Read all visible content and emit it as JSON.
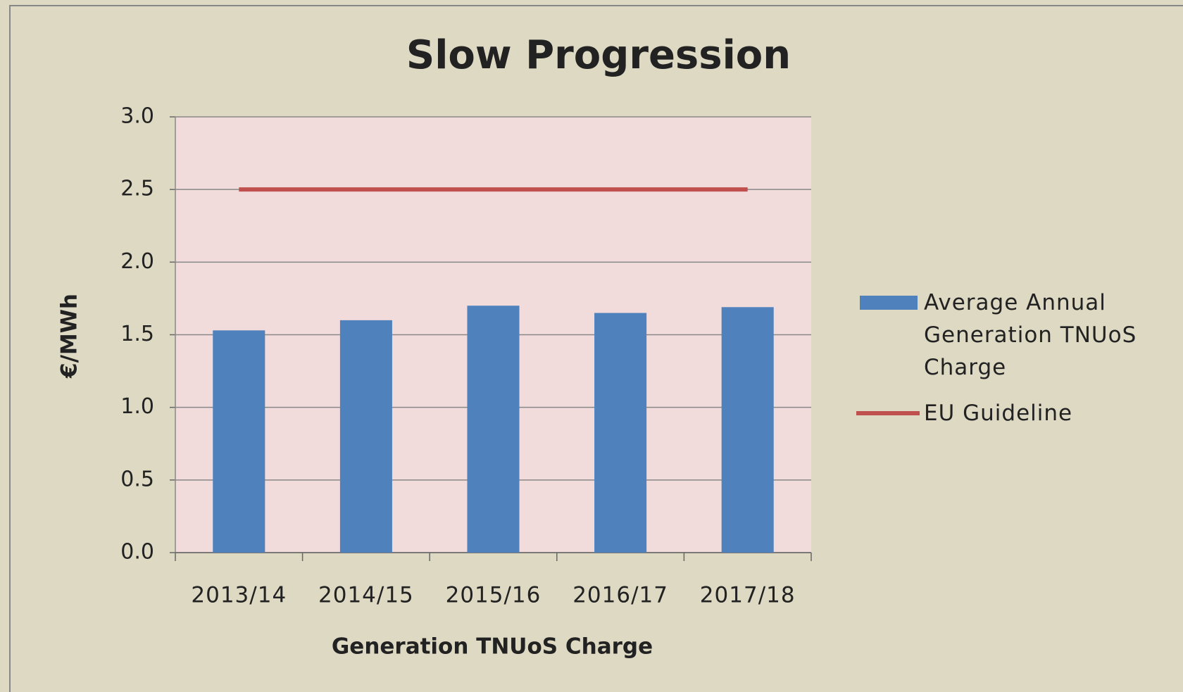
{
  "chart_data": {
    "type": "bar",
    "title": "Slow Progression",
    "x_label": "Generation TNUoS Charge",
    "y_label": "€/MWh",
    "categories": [
      "2013/14",
      "2014/15",
      "2015/16",
      "2016/17",
      "2017/18"
    ],
    "series": [
      {
        "name": "Average Annual Generation TNUoS Charge",
        "type": "bar",
        "color": "#4f81bd",
        "values": [
          1.53,
          1.6,
          1.7,
          1.65,
          1.69
        ]
      },
      {
        "name": "EU Guideline",
        "type": "line",
        "color": "#c0504d",
        "values": [
          2.5,
          2.5,
          2.5,
          2.5,
          2.5
        ]
      }
    ],
    "ylim": [
      0,
      3
    ],
    "yticks": [
      {
        "value": 0,
        "label": "0.0"
      },
      {
        "value": 0.5,
        "label": "0.5"
      },
      {
        "value": 1,
        "label": "1.0"
      },
      {
        "value": 1.5,
        "label": "1.5"
      },
      {
        "value": 2,
        "label": "2.0"
      },
      {
        "value": 2.5,
        "label": "2.5"
      },
      {
        "value": 3,
        "label": "3.0"
      }
    ],
    "grid": true,
    "legend": "right"
  }
}
